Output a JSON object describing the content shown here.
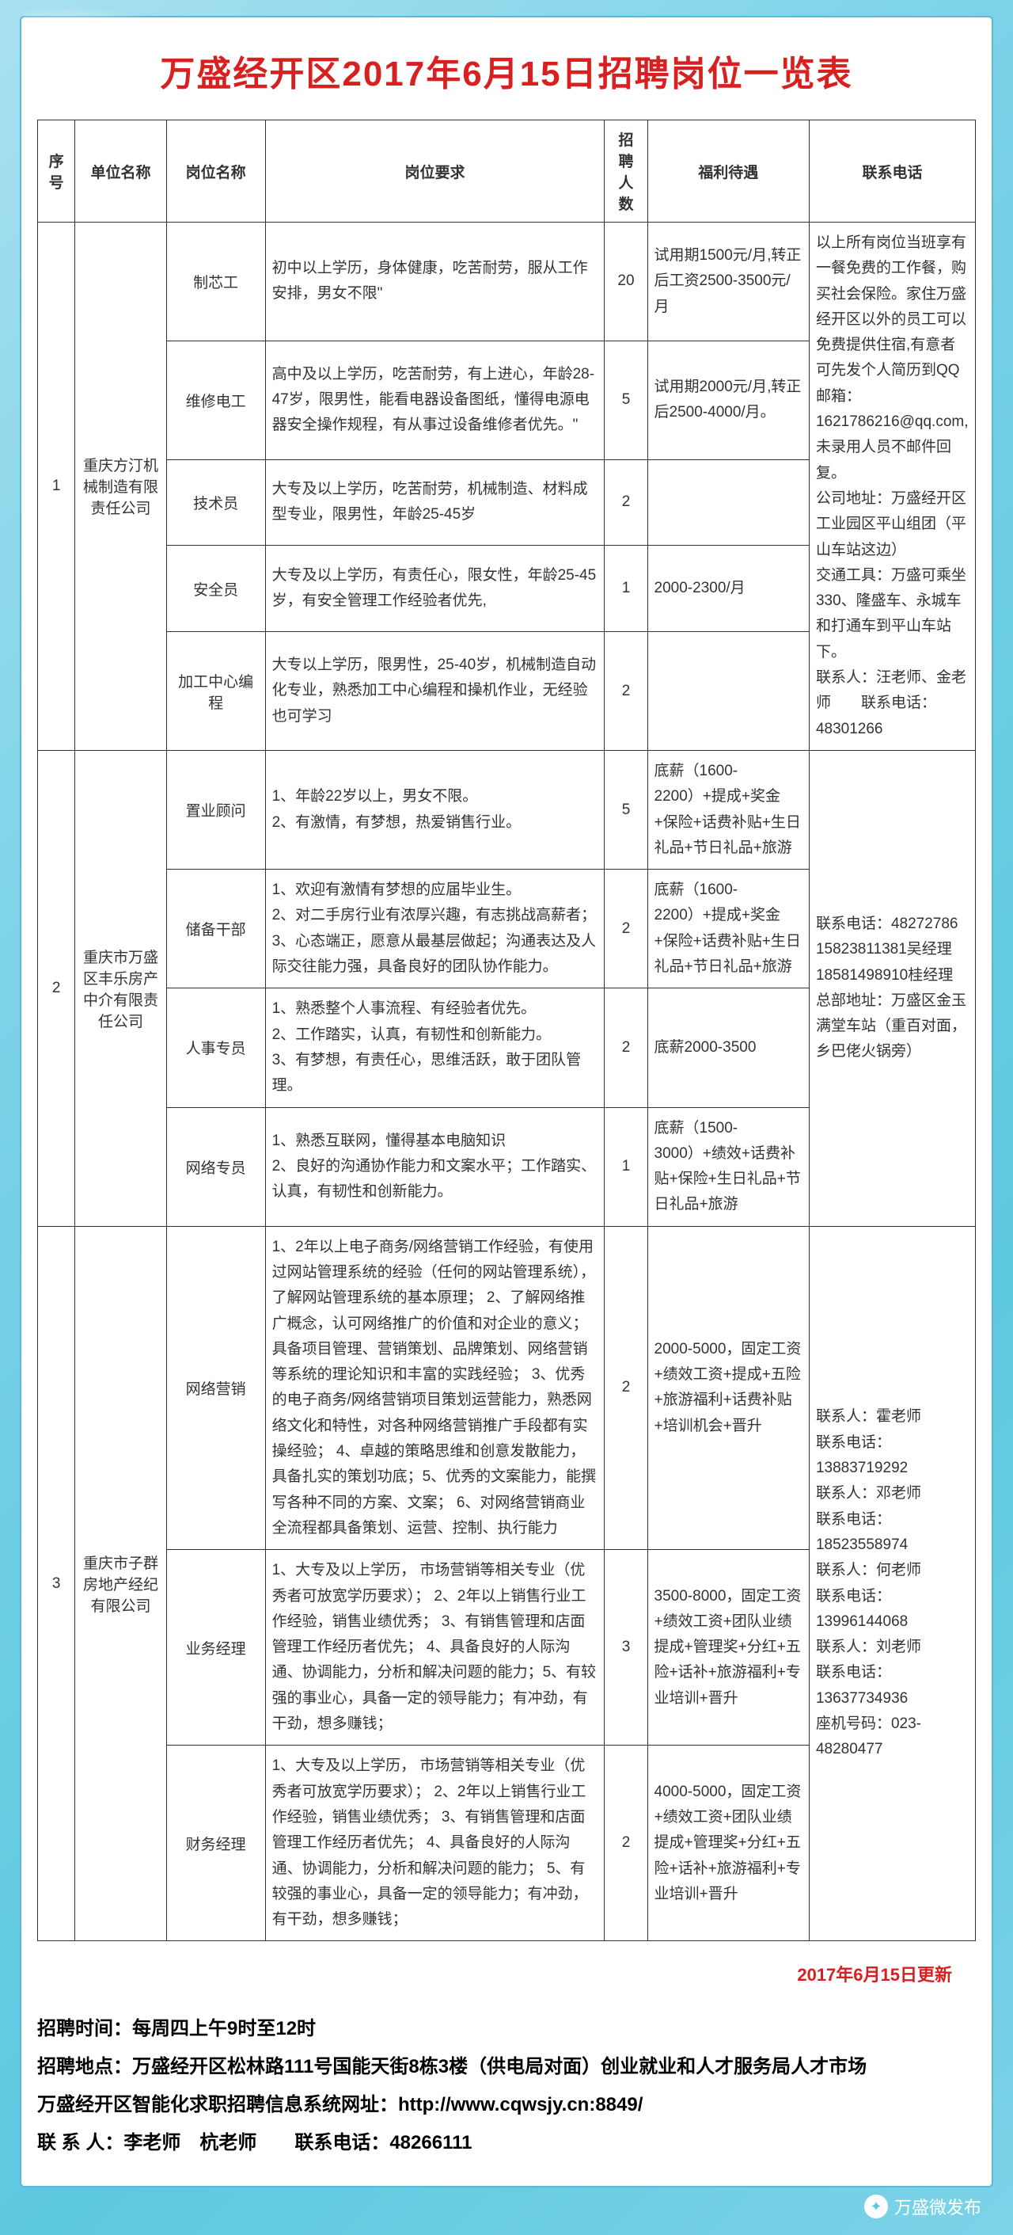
{
  "title": "万盛经开区2017年6月15日招聘岗位一览表",
  "headers": {
    "seq": "序号",
    "company": "单位名称",
    "post": "岗位名称",
    "req": "岗位要求",
    "count": "招聘人数",
    "benefit": "福利待遇",
    "contact": "联系电话"
  },
  "companies": [
    {
      "seq": "1",
      "name": "重庆方汀机械制造有限责任公司",
      "contact": "以上所有岗位当班享有一餐免费的工作餐，购买社会保险。家住万盛经开区以外的员工可以免费提供住宿,有意者可先发个人简历到QQ邮箱：1621786216@qq.com,未录用人员不邮件回复。\n公司地址：万盛经开区工业园区平山组团（平山车站这边）\n交通工具：万盛可乘坐330、隆盛车、永城车和打通车到平山车站下。\n联系人：汪老师、金老师　　联系电话：48301266",
      "jobs": [
        {
          "post": "制芯工",
          "req": "初中以上学历，身体健康，吃苦耐劳，服从工作安排，男女不限\"",
          "count": "20",
          "benefit": "试用期1500元/月,转正后工资2500-3500元/月"
        },
        {
          "post": "维修电工",
          "req": "高中及以上学历，吃苦耐劳，有上进心，年龄28-47岁，限男性，能看电器设备图纸，懂得电源电器安全操作规程，有从事过设备维修者优先。\"",
          "count": "5",
          "benefit": "试用期2000元/月,转正后2500-4000/月。"
        },
        {
          "post": "技术员",
          "req": "大专及以上学历，吃苦耐劳，机械制造、材料成型专业，限男性，年龄25-45岁",
          "count": "2",
          "benefit": ""
        },
        {
          "post": "安全员",
          "req": "大专及以上学历，有责任心，限女性，年龄25-45岁，有安全管理工作经验者优先,",
          "count": "1",
          "benefit": "2000-2300/月"
        },
        {
          "post": "加工中心编程",
          "req": "大专以上学历，限男性，25-40岁，机械制造自动化专业，熟悉加工中心编程和操机作业，无经验也可学习",
          "count": "2",
          "benefit": ""
        }
      ]
    },
    {
      "seq": "2",
      "name": "重庆市万盛区丰乐房产中介有限责任公司",
      "contact": "联系电话：48272786\n15823811381吴经理\n18581498910桂经理\n总部地址：万盛区金玉满堂车站（重百对面，乡巴佬火锅旁）",
      "jobs": [
        {
          "post": "置业顾问",
          "req": "1、年龄22岁以上，男女不限。\n2、有激情，有梦想，热爱销售行业。",
          "count": "5",
          "benefit": "底薪（1600-2200）+提成+奖金+保险+话费补贴+生日礼品+节日礼品+旅游"
        },
        {
          "post": "储备干部",
          "req": "1、欢迎有激情有梦想的应届毕业生。\n2、对二手房行业有浓厚兴趣，有志挑战高薪者；3、心态端正，愿意从最基层做起；沟通表达及人际交往能力强，具备良好的团队协作能力。",
          "count": "2",
          "benefit": "底薪（1600-2200）+提成+奖金+保险+话费补贴+生日礼品+节日礼品+旅游"
        },
        {
          "post": "人事专员",
          "req": "1、熟悉整个人事流程、有经验者优先。\n2、工作踏实，认真，有韧性和创新能力。\n3、有梦想，有责任心，思维活跃，敢于团队管理。",
          "count": "2",
          "benefit": "底薪2000-3500"
        },
        {
          "post": "网络专员",
          "req": "1、熟悉互联网，懂得基本电脑知识\n2、良好的沟通协作能力和文案水平；工作踏实、认真，有韧性和创新能力。",
          "count": "1",
          "benefit": "底薪（1500-3000）+绩效+话费补贴+保险+生日礼品+节日礼品+旅游"
        }
      ]
    },
    {
      "seq": "3",
      "name": "重庆市子群房地产经纪有限公司",
      "contact": "联系人：霍老师\n联系电话：13883719292\n联系人：邓老师\n联系电话：18523558974\n联系人：何老师\n联系电话：13996144068\n联系人：刘老师\n联系电话：13637734936\n座机号码：023-48280477",
      "jobs": [
        {
          "post": "网络营销",
          "req": "1、2年以上电子商务/网络营销工作经验，有使用过网站管理系统的经验（任何的网站管理系统），了解网站管理系统的基本原理；  2、了解网络推广概念，认可网络推广的价值和对企业的意义；具备项目管理、营销策划、品牌策划、网络营销等系统的理论知识和丰富的实践经验；  3、优秀的电子商务/网络营销项目策划运营能力，熟悉网络文化和特性，对各种网络营销推广手段都有实操经验；  4、卓越的策略思维和创意发散能力，具备扎实的策划功底；5、优秀的文案能力，能撰写各种不同的方案、文案；  6、对网络营销商业全流程都具备策划、运营、控制、执行能力",
          "count": "2",
          "benefit": "2000-5000，固定工资+绩效工资+提成+五险+旅游福利+话费补贴+培训机会+晋升"
        },
        {
          "post": "业务经理",
          "req": "1、大专及以上学历， 市场营销等相关专业（优秀者可放宽学历要求）；  2、2年以上销售行业工作经验，销售业绩优秀；  3、有销售管理和店面管理工作经历者优先；  4、具备良好的人际沟通、协调能力，分析和解决问题的能力；5、有较强的事业心，具备一定的领导能力；有冲劲，有干劲，想多赚钱；",
          "count": "3",
          "benefit": "3500-8000，固定工资+绩效工资+团队业绩提成+管理奖+分红+五险+话补+旅游福利+专业培训+晋升"
        },
        {
          "post": "财务经理",
          "req": "1、大专及以上学历， 市场营销等相关专业（优秀者可放宽学历要求）；  2、2年以上销售行业工作经验，销售业绩优秀；  3、有销售管理和店面管理工作经历者优先；  4、具备良好的人际沟通、协调能力，分析和解决问题的能力；  5、有较强的事业心，具备一定的领导能力；有冲劲，有干劲，想多赚钱；",
          "count": "2",
          "benefit": "4000-5000，固定工资+绩效工资+团队业绩提成+管理奖+分红+五险+话补+旅游福利+专业培训+晋升"
        }
      ]
    }
  ],
  "update_note": "2017年6月15日更新",
  "footer": {
    "line1": "招聘时间：每周四上午9时至12时",
    "line2": "招聘地点：万盛经开区松林路111号国能天街8栋3楼（供电局对面）创业就业和人才服务局人才市场",
    "line3": "万盛经开区智能化求职招聘信息系统网址：http://www.cqwsjy.cn:8849/",
    "line4": "联 系 人：李老师　杭老师　　联系电话：48266111"
  },
  "wechat": "万盛微发布",
  "colors": {
    "title": "#d82020",
    "bg1": "#a8e0f0",
    "bg2": "#5cc8e0",
    "border": "#333"
  }
}
